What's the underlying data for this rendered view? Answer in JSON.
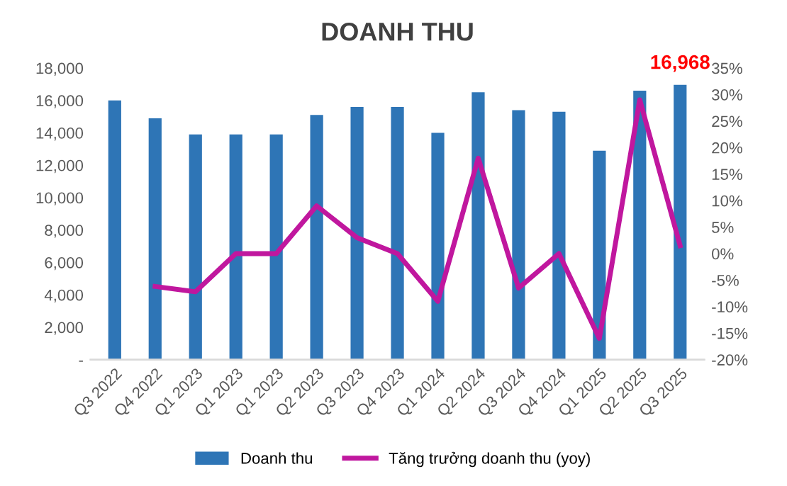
{
  "chart_data": {
    "type": "bar",
    "title": "DOANH THU",
    "categories": [
      "Q3 2022",
      "Q4 2022",
      "Q1 2023",
      "Q1 2023",
      "Q1 2023",
      "Q2 2023",
      "Q3 2023",
      "Q4 2023",
      "Q1 2024",
      "Q2 2024",
      "Q3 2024",
      "Q4 2024",
      "Q1 2025",
      "Q2 2025",
      "Q3 2025"
    ],
    "series": [
      {
        "name": "Doanh thu",
        "color": "#2e75b6",
        "values": [
          16000,
          14900,
          13900,
          13900,
          13900,
          15100,
          15600,
          15600,
          14000,
          16500,
          15400,
          15300,
          12900,
          16600,
          16968
        ],
        "value_labels": [
          null,
          null,
          null,
          null,
          null,
          null,
          null,
          null,
          null,
          null,
          null,
          null,
          null,
          null,
          "16,968"
        ]
      },
      {
        "name": "Tăng trưởng doanh thu (yoy)",
        "type": "line",
        "axis": "y2",
        "color": "#c0179e",
        "values": [
          null,
          -6.2,
          -7.2,
          0,
          0,
          9,
          3,
          0,
          -9,
          18,
          -6.5,
          0,
          -16,
          29,
          1.5
        ]
      }
    ],
    "ylim": [
      0,
      18000
    ],
    "yticks": [
      {
        "value": 0,
        "label": "-"
      },
      {
        "value": 2000,
        "label": "2,000"
      },
      {
        "value": 4000,
        "label": "4,000"
      },
      {
        "value": 6000,
        "label": "6,000"
      },
      {
        "value": 8000,
        "label": "8,000"
      },
      {
        "value": 10000,
        "label": "10,000"
      },
      {
        "value": 12000,
        "label": "12,000"
      },
      {
        "value": 14000,
        "label": "14,000"
      },
      {
        "value": 16000,
        "label": "16,000"
      },
      {
        "value": 18000,
        "label": "18,000"
      }
    ],
    "y2lim": [
      -20,
      35
    ],
    "y2ticks": [
      {
        "value": -20,
        "label": "-20%"
      },
      {
        "value": -15,
        "label": "-15%"
      },
      {
        "value": -10,
        "label": "-10%"
      },
      {
        "value": -5,
        "label": "-5%"
      },
      {
        "value": 0,
        "label": "0%"
      },
      {
        "value": 5,
        "label": "5%"
      },
      {
        "value": 10,
        "label": "10%"
      },
      {
        "value": 15,
        "label": "15%"
      },
      {
        "value": 20,
        "label": "20%"
      },
      {
        "value": 25,
        "label": "25%"
      },
      {
        "value": 30,
        "label": "30%"
      },
      {
        "value": 35,
        "label": "35%"
      }
    ],
    "legend": "bottom",
    "grid": false
  }
}
